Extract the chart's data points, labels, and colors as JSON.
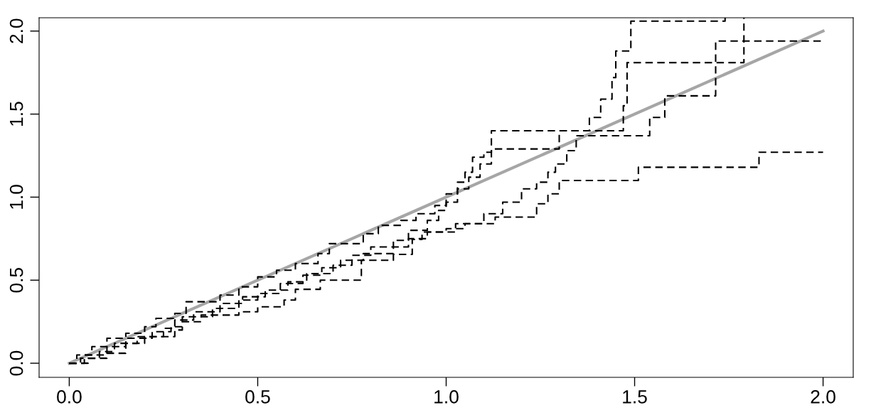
{
  "chart_data": {
    "type": "step",
    "xlim": [
      -0.08,
      2.08
    ],
    "ylim": [
      -0.085,
      2.08
    ],
    "xticks": [
      {
        "value": 0,
        "label": "0.0"
      },
      {
        "value": 0.5,
        "label": "0.5"
      },
      {
        "value": 1,
        "label": "1.0"
      },
      {
        "value": 1.5,
        "label": "1.5"
      },
      {
        "value": 2,
        "label": "2.0"
      }
    ],
    "yticks": [
      {
        "value": 0,
        "label": "0.0"
      },
      {
        "value": 0.5,
        "label": "0.5"
      },
      {
        "value": 1,
        "label": "1.0"
      },
      {
        "value": 1.5,
        "label": "1.5"
      },
      {
        "value": 2,
        "label": "2.0"
      }
    ],
    "grid": false,
    "marker": "none",
    "line_style": "dashed",
    "series": [
      {
        "type": "line",
        "color": "#a6a6a6",
        "line_style": "solid",
        "x": [
          0,
          2
        ],
        "values": [
          0,
          2
        ]
      },
      {
        "color": "#000000",
        "x": [
          0,
          0.02,
          0.06,
          0.1,
          0.15,
          0.2,
          0.23,
          0.28,
          0.31,
          0.4,
          0.45,
          0.5,
          0.55,
          0.6,
          0.66,
          0.69,
          0.78,
          0.82,
          0.88,
          0.92,
          0.97,
          1.0,
          1.03,
          1.05,
          1.07,
          1.1,
          1.12,
          1.38,
          1.41,
          1.44,
          1.45,
          1.49,
          1.74
        ],
        "values": [
          0,
          0.05,
          0.1,
          0.15,
          0.18,
          0.22,
          0.27,
          0.3,
          0.37,
          0.41,
          0.46,
          0.52,
          0.56,
          0.6,
          0.66,
          0.72,
          0.78,
          0.83,
          0.86,
          0.9,
          0.95,
          1.02,
          1.09,
          1.15,
          1.24,
          1.27,
          1.4,
          1.48,
          1.59,
          1.72,
          1.88,
          2.06,
          2.08
        ]
      },
      {
        "color": "#000000",
        "x": [
          0,
          0.03,
          0.08,
          0.12,
          0.18,
          0.25,
          0.28,
          0.33,
          0.4,
          0.46,
          0.52,
          0.58,
          0.63,
          0.7,
          0.75,
          0.8,
          0.86,
          0.9,
          0.95,
          0.98,
          1.0,
          1.03,
          1.06,
          1.09,
          1.12,
          1.3,
          1.47,
          1.48,
          1.79
        ],
        "values": [
          0,
          0.03,
          0.07,
          0.12,
          0.16,
          0.21,
          0.26,
          0.31,
          0.36,
          0.4,
          0.44,
          0.49,
          0.54,
          0.59,
          0.65,
          0.7,
          0.74,
          0.8,
          0.86,
          0.92,
          0.97,
          1.05,
          1.12,
          1.2,
          1.29,
          1.4,
          1.55,
          1.81,
          2.08
        ]
      },
      {
        "color": "#000000",
        "x": [
          0,
          0.04,
          0.1,
          0.15,
          0.22,
          0.27,
          0.3,
          0.38,
          0.45,
          0.5,
          0.56,
          0.62,
          0.67,
          0.72,
          0.78,
          0.86,
          0.9,
          0.95,
          1.0,
          1.05,
          1.1,
          1.15,
          1.2,
          1.24,
          1.27,
          1.29,
          1.32,
          1.345,
          1.54,
          1.58,
          1.715,
          2.0
        ],
        "values": [
          0,
          0.05,
          0.1,
          0.15,
          0.19,
          0.22,
          0.28,
          0.33,
          0.38,
          0.42,
          0.48,
          0.53,
          0.575,
          0.62,
          0.66,
          0.7,
          0.75,
          0.79,
          0.81,
          0.84,
          0.9,
          0.97,
          1.05,
          1.09,
          1.15,
          1.2,
          1.28,
          1.37,
          1.48,
          1.61,
          1.94,
          1.94
        ]
      },
      {
        "color": "#000000",
        "x": [
          0,
          0.05,
          0.1,
          0.15,
          0.2,
          0.28,
          0.3,
          0.35,
          0.45,
          0.5,
          0.57,
          0.6,
          0.666,
          0.775,
          0.86,
          0.91,
          0.936,
          1.025,
          1.13,
          1.24,
          1.27,
          1.3,
          1.51,
          1.83,
          2.0
        ],
        "values": [
          0,
          0.03,
          0.06,
          0.12,
          0.16,
          0.2,
          0.25,
          0.29,
          0.31,
          0.34,
          0.38,
          0.445,
          0.5,
          0.62,
          0.655,
          0.745,
          0.79,
          0.84,
          0.88,
          0.96,
          1.02,
          1.1,
          1.18,
          1.27,
          1.27
        ]
      }
    ]
  }
}
